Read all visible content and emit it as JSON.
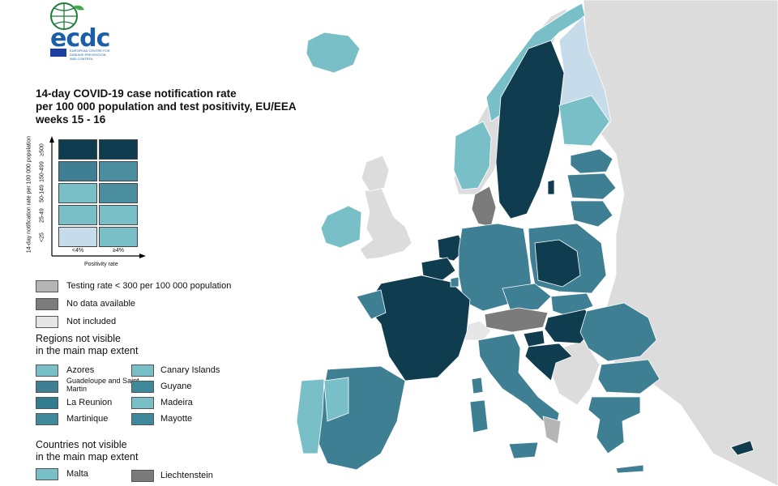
{
  "logo": {
    "text": "ecdc",
    "subtitle": "EUROPEAN CENTRE FOR DISEASE PREVENTION AND CONTROL"
  },
  "title_lines": [
    "14-day COVID-19 case notification rate",
    "per 100 000 population and test positivity, EU/EEA",
    "weeks 15 - 16"
  ],
  "matrix": {
    "y_axis_label": "14-day notification rate per 100 000 population",
    "x_axis_label": "Positivity rate",
    "rows": [
      "≥500",
      "150-499",
      "50-149",
      "25-49",
      "<25"
    ],
    "columns": [
      "<4%",
      "≥4%"
    ],
    "colors": [
      [
        "#0f3c4f",
        "#0f3c4f"
      ],
      [
        "#3e7f93",
        "#4a8ea0"
      ],
      [
        "#79bfc7",
        "#4a8ea0"
      ],
      [
        "#79bfc7",
        "#79bfc7"
      ],
      [
        "#c6dcea",
        "#79bfc7"
      ]
    ]
  },
  "legend": [
    {
      "label": "Testing rate < 300 per 100 000 population",
      "color": "#b5b5b5"
    },
    {
      "label": "No data available",
      "color": "#7b7b7b"
    },
    {
      "label": "Not included",
      "color": "#e6e6e6"
    }
  ],
  "regions_heading": [
    "Regions not visible",
    "in the main map extent"
  ],
  "regions": [
    {
      "label": "Azores",
      "color": "#79bfc7"
    },
    {
      "label": "Canary Islands",
      "color": "#79bfc7"
    },
    {
      "label": "Guadeloupe and Saint Martin",
      "color": "#3e7f93"
    },
    {
      "label": "Guyane",
      "color": "#3e8a9c"
    },
    {
      "label": "La Reunion",
      "color": "#2f7c90"
    },
    {
      "label": "Madeira",
      "color": "#79bfc7"
    },
    {
      "label": "Martinique",
      "color": "#3e8a9c"
    },
    {
      "label": "Mayotte",
      "color": "#3e8a9c"
    }
  ],
  "countries_heading": [
    "Countries not visible",
    "in the main map extent"
  ],
  "countries": [
    {
      "label": "Malta",
      "color": "#79bfc7"
    },
    {
      "label": "Liechtenstein",
      "color": "#7b7b7b"
    }
  ],
  "map_colors": {
    "sea": "#ffffff",
    "non_eu": "#dcdcdc",
    "lt500": "#0f3c4f",
    "r150": "#3e7f93",
    "r150b": "#2f7c90",
    "r50": "#79bfc7",
    "lt25": "#c6dcea",
    "no_data": "#7b7b7b",
    "testing_low": "#b5b5b5",
    "not_included": "#e6e6e6"
  }
}
